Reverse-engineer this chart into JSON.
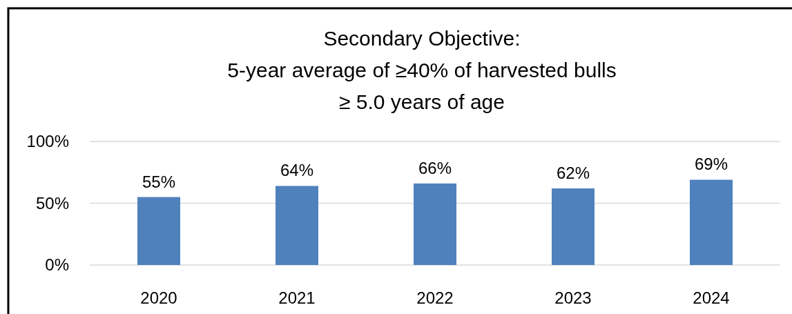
{
  "chart_data": {
    "type": "bar",
    "title": "Secondary Objective:\n5-year average of ≥40% of harvested bulls\n≥ 5.0 years of age",
    "categories": [
      "2020",
      "2021",
      "2022",
      "2023",
      "2024"
    ],
    "values": [
      55,
      64,
      66,
      62,
      69
    ],
    "color": "#4f81bd",
    "ylim": [
      0,
      100
    ],
    "yticks": [
      {
        "value": 0,
        "label": "0%"
      },
      {
        "value": 50,
        "label": "50%"
      },
      {
        "value": 100,
        "label": "100%"
      }
    ],
    "grid": "y",
    "value_labels": [
      "55%",
      "64%",
      "66%",
      "62%",
      "69%"
    ]
  }
}
